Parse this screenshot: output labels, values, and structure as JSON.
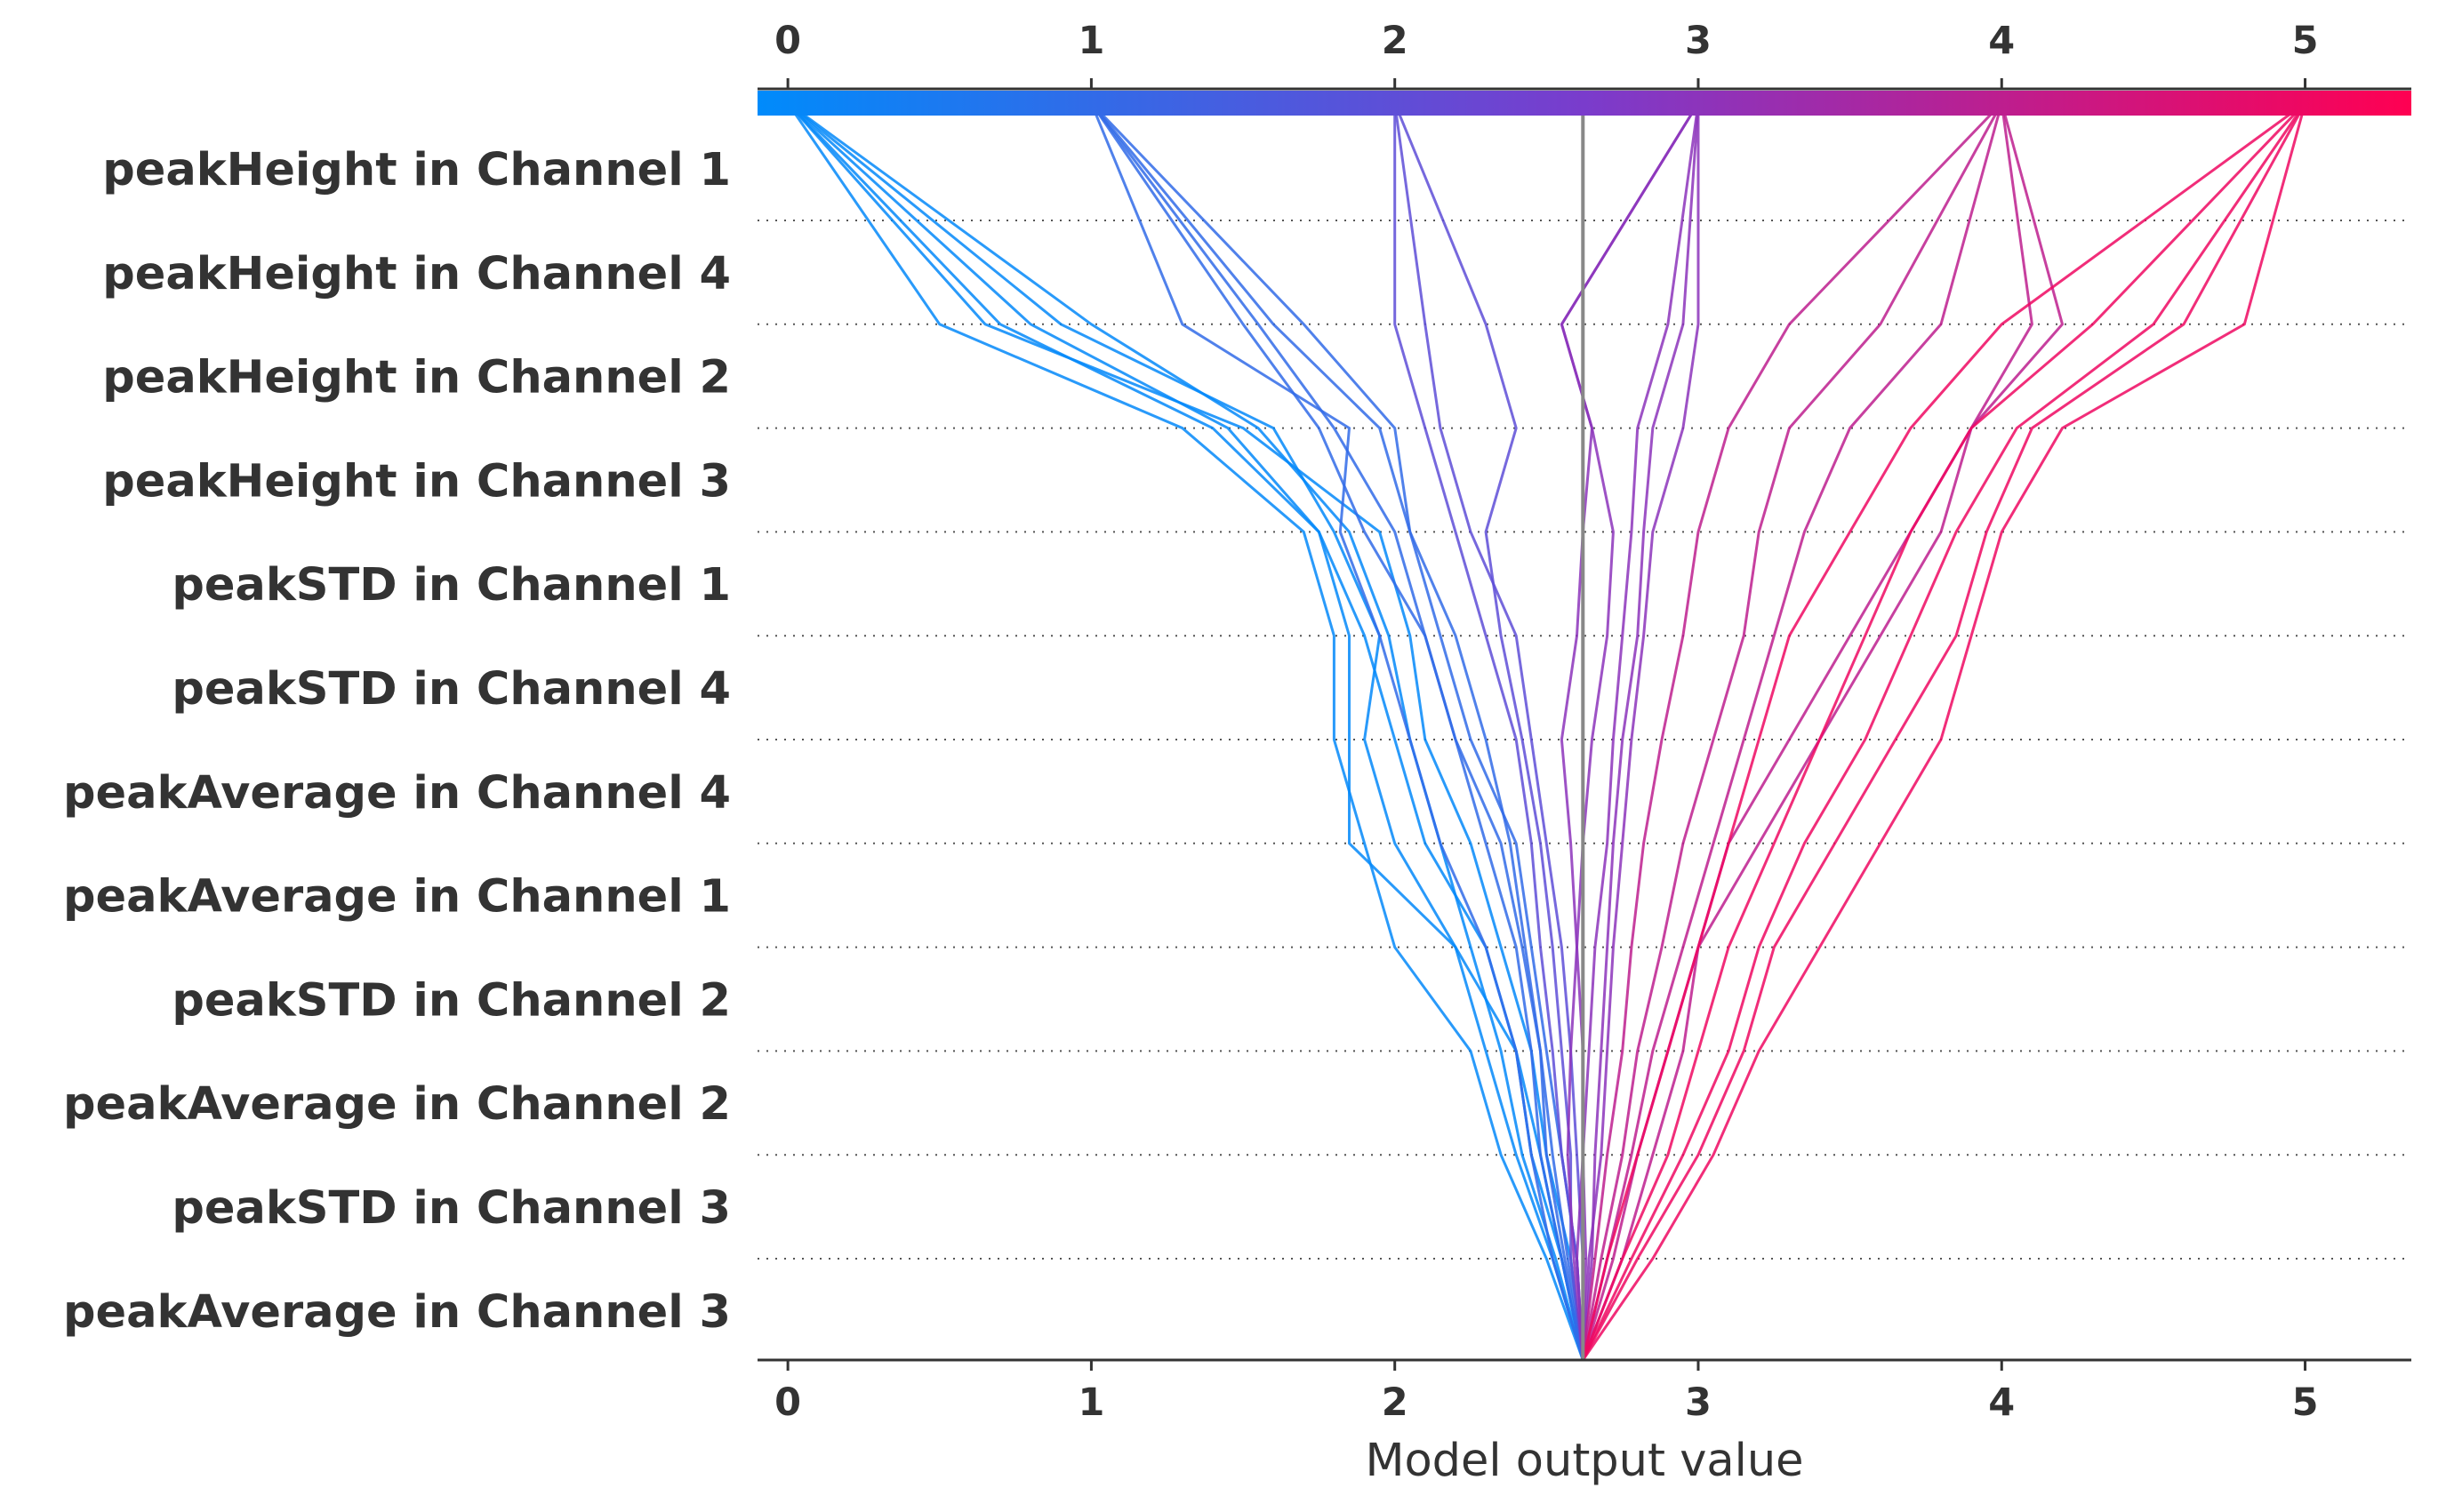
{
  "chart_data": {
    "type": "line",
    "xlabel": "Model output value",
    "ylabel": "",
    "title": "",
    "xlim": [
      -0.1,
      5.35
    ],
    "xticks": [
      0,
      1,
      2,
      3,
      4,
      5
    ],
    "grid": "dotted horizontal lines at each feature row",
    "legend": "none",
    "base_value": 2.62,
    "features": [
      "peakHeight in Channel 1",
      "peakHeight in Channel 4",
      "peakHeight in Channel 2",
      "peakHeight in Channel 3",
      "peakSTD in Channel 1",
      "peakSTD in Channel 4",
      "peakAverage in Channel 4",
      "peakAverage in Channel 1",
      "peakSTD in Channel 2",
      "peakAverage in Channel 2",
      "peakSTD in Channel 3",
      "peakAverage in Channel 3"
    ],
    "colorbar": {
      "range": [
        -0.1,
        5.35
      ],
      "colors": [
        "#008bfb",
        "#ff0052"
      ],
      "tick_labels": [
        "0",
        "1",
        "2",
        "3",
        "4",
        "5"
      ]
    },
    "series": [
      {
        "values": [
          2.62,
          2.55,
          2.45,
          2.4,
          2.3,
          2.1,
          2.0,
          1.9,
          1.75,
          1.4,
          0.7,
          0.0
        ]
      },
      {
        "values": [
          2.62,
          2.52,
          2.4,
          2.3,
          2.2,
          2.0,
          1.9,
          1.95,
          1.8,
          1.6,
          0.9,
          0.0
        ]
      },
      {
        "values": [
          2.62,
          2.5,
          2.35,
          2.25,
          2.0,
          1.9,
          1.8,
          1.8,
          1.7,
          1.3,
          0.5,
          0.0
        ]
      },
      {
        "values": [
          2.62,
          2.58,
          2.5,
          2.45,
          2.35,
          2.25,
          2.1,
          2.05,
          1.95,
          1.5,
          0.65,
          0.0
        ]
      },
      {
        "values": [
          2.62,
          2.55,
          2.48,
          2.4,
          2.2,
          1.85,
          1.85,
          1.85,
          1.75,
          1.45,
          0.8,
          0.0
        ]
      },
      {
        "values": [
          2.62,
          2.53,
          2.42,
          2.35,
          2.25,
          2.15,
          2.05,
          1.98,
          1.85,
          1.55,
          1.0,
          0.0
        ]
      },
      {
        "values": [
          2.62,
          2.56,
          2.5,
          2.48,
          2.42,
          2.35,
          2.2,
          2.1,
          1.9,
          1.75,
          1.5,
          1.0
        ]
      },
      {
        "values": [
          2.62,
          2.55,
          2.48,
          2.45,
          2.4,
          2.3,
          2.2,
          2.1,
          2.0,
          1.8,
          1.55,
          1.0
        ]
      },
      {
        "values": [
          2.62,
          2.52,
          2.45,
          2.4,
          2.3,
          2.15,
          2.05,
          1.95,
          1.82,
          1.85,
          1.3,
          1.0
        ]
      },
      {
        "values": [
          2.62,
          2.6,
          2.55,
          2.5,
          2.45,
          2.4,
          2.25,
          2.15,
          2.05,
          2.0,
          1.7,
          1.0
        ]
      },
      {
        "values": [
          2.62,
          2.57,
          2.52,
          2.48,
          2.43,
          2.38,
          2.3,
          2.2,
          2.05,
          1.95,
          1.6,
          1.0
        ]
      },
      {
        "values": [
          2.62,
          2.6,
          2.55,
          2.52,
          2.48,
          2.45,
          2.4,
          2.3,
          2.2,
          2.1,
          2.0,
          2.0
        ]
      },
      {
        "values": [
          2.62,
          2.62,
          2.6,
          2.58,
          2.55,
          2.5,
          2.45,
          2.4,
          2.25,
          2.15,
          2.1,
          2.0
        ]
      },
      {
        "values": [
          2.62,
          2.58,
          2.58,
          2.55,
          2.52,
          2.48,
          2.42,
          2.35,
          2.3,
          2.4,
          2.3,
          2.0
        ]
      },
      {
        "values": [
          2.62,
          2.63,
          2.62,
          2.62,
          2.6,
          2.58,
          2.55,
          2.6,
          2.62,
          2.65,
          2.55,
          3.0
        ]
      },
      {
        "values": [
          2.62,
          2.65,
          2.66,
          2.68,
          2.7,
          2.72,
          2.75,
          2.8,
          2.82,
          2.85,
          2.95,
          3.0
        ]
      },
      {
        "values": [
          2.62,
          2.6,
          2.62,
          2.64,
          2.66,
          2.7,
          2.72,
          2.75,
          2.78,
          2.8,
          2.9,
          3.0
        ]
      },
      {
        "values": [
          2.62,
          2.64,
          2.68,
          2.7,
          2.72,
          2.75,
          2.78,
          2.82,
          2.85,
          2.95,
          3.0,
          3.0
        ]
      },
      {
        "values": [
          2.62,
          2.59,
          2.57,
          2.58,
          2.6,
          2.62,
          2.65,
          2.7,
          2.72,
          2.65,
          2.55,
          3.0
        ]
      },
      {
        "values": [
          2.62,
          2.66,
          2.7,
          2.75,
          2.78,
          2.82,
          2.88,
          2.95,
          3.0,
          3.1,
          3.3,
          4.0
        ]
      },
      {
        "values": [
          2.62,
          2.7,
          2.78,
          2.85,
          2.95,
          3.05,
          3.15,
          3.25,
          3.35,
          3.5,
          3.8,
          4.0
        ]
      },
      {
        "values": [
          2.62,
          2.75,
          2.85,
          2.95,
          3.0,
          3.1,
          3.3,
          3.5,
          3.7,
          3.9,
          4.1,
          4.0
        ]
      },
      {
        "values": [
          2.62,
          2.68,
          2.75,
          2.8,
          2.88,
          2.95,
          3.05,
          3.15,
          3.2,
          3.3,
          3.6,
          4.0
        ]
      },
      {
        "values": [
          2.62,
          2.72,
          2.8,
          2.9,
          3.0,
          3.2,
          3.4,
          3.6,
          3.8,
          3.9,
          4.2,
          4.0
        ]
      },
      {
        "values": [
          2.62,
          2.7,
          2.8,
          2.9,
          3.0,
          3.1,
          3.2,
          3.3,
          3.5,
          3.7,
          4.0,
          5.0
        ]
      },
      {
        "values": [
          2.62,
          2.75,
          2.9,
          3.0,
          3.1,
          3.25,
          3.4,
          3.55,
          3.7,
          3.9,
          4.3,
          5.0
        ]
      },
      {
        "values": [
          2.62,
          2.78,
          2.95,
          3.1,
          3.2,
          3.35,
          3.55,
          3.7,
          3.85,
          4.05,
          4.5,
          5.0
        ]
      },
      {
        "values": [
          2.62,
          2.8,
          3.0,
          3.15,
          3.25,
          3.45,
          3.65,
          3.85,
          3.95,
          4.1,
          4.6,
          5.0
        ]
      },
      {
        "values": [
          2.62,
          2.85,
          3.05,
          3.2,
          3.4,
          3.6,
          3.8,
          3.9,
          4.0,
          4.2,
          4.8,
          5.0
        ]
      }
    ]
  }
}
